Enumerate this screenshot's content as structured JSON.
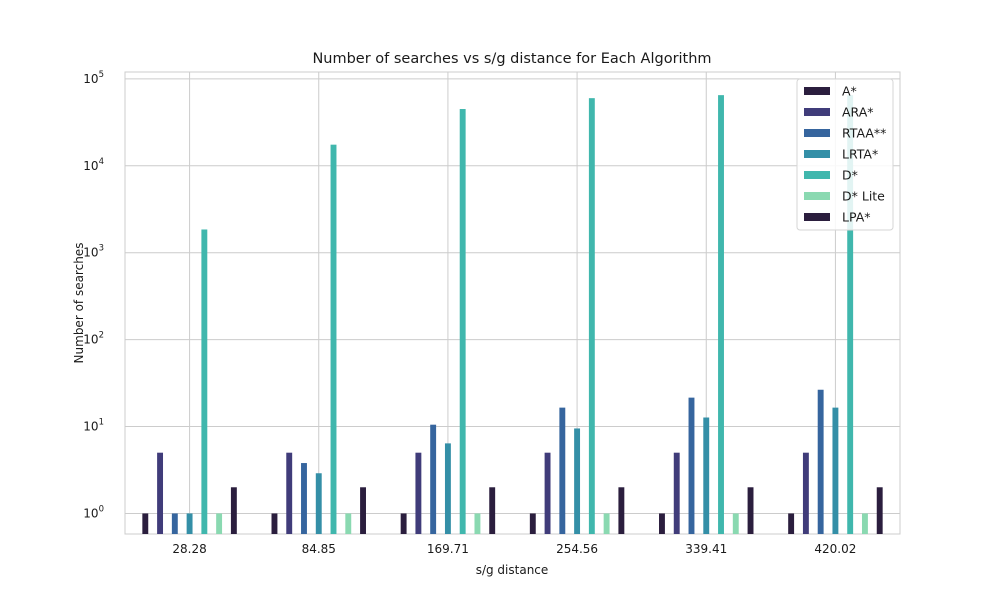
{
  "chart_data": {
    "type": "bar",
    "title": "Number of searches vs s/g distance for Each Algorithm",
    "xlabel": "s/g distance",
    "ylabel": "Number of searches",
    "yscale": "log",
    "ylim": [
      0.58,
      120000
    ],
    "grid": true,
    "legend_position": "top-right",
    "categories": [
      "28.28",
      "84.85",
      "169.71",
      "254.56",
      "339.41",
      "420.02"
    ],
    "y_ticks": [
      {
        "base": "10",
        "exp": "0",
        "value": 1
      },
      {
        "base": "10",
        "exp": "1",
        "value": 10
      },
      {
        "base": "10",
        "exp": "2",
        "value": 100
      },
      {
        "base": "10",
        "exp": "3",
        "value": 1000
      },
      {
        "base": "10",
        "exp": "4",
        "value": 10000
      },
      {
        "base": "10",
        "exp": "5",
        "value": 100000
      }
    ],
    "series": [
      {
        "name": "A*",
        "color": "#2b1e3e",
        "values": [
          1,
          1,
          1,
          1,
          1,
          1
        ]
      },
      {
        "name": "ARA*",
        "color": "#403c7a",
        "values": [
          5,
          5,
          5,
          5,
          5,
          5
        ]
      },
      {
        "name": "RTAA**",
        "color": "#36659e",
        "values": [
          1,
          3.8,
          10.5,
          16.5,
          21.5,
          26.5
        ]
      },
      {
        "name": "LRTA*",
        "color": "#348fa7",
        "values": [
          1,
          2.9,
          6.4,
          9.5,
          12.7,
          16.5
        ]
      },
      {
        "name": "D*",
        "color": "#40b7ad",
        "values": [
          1850,
          17500,
          45000,
          60000,
          65000,
          65000
        ]
      },
      {
        "name": "D* Lite",
        "color": "#8ad9b1",
        "values": [
          1,
          1,
          1,
          1,
          1,
          1
        ]
      },
      {
        "name": "LPA*",
        "color": "#2b1e3e",
        "values": [
          2,
          2,
          2,
          2,
          2,
          2
        ]
      }
    ]
  }
}
